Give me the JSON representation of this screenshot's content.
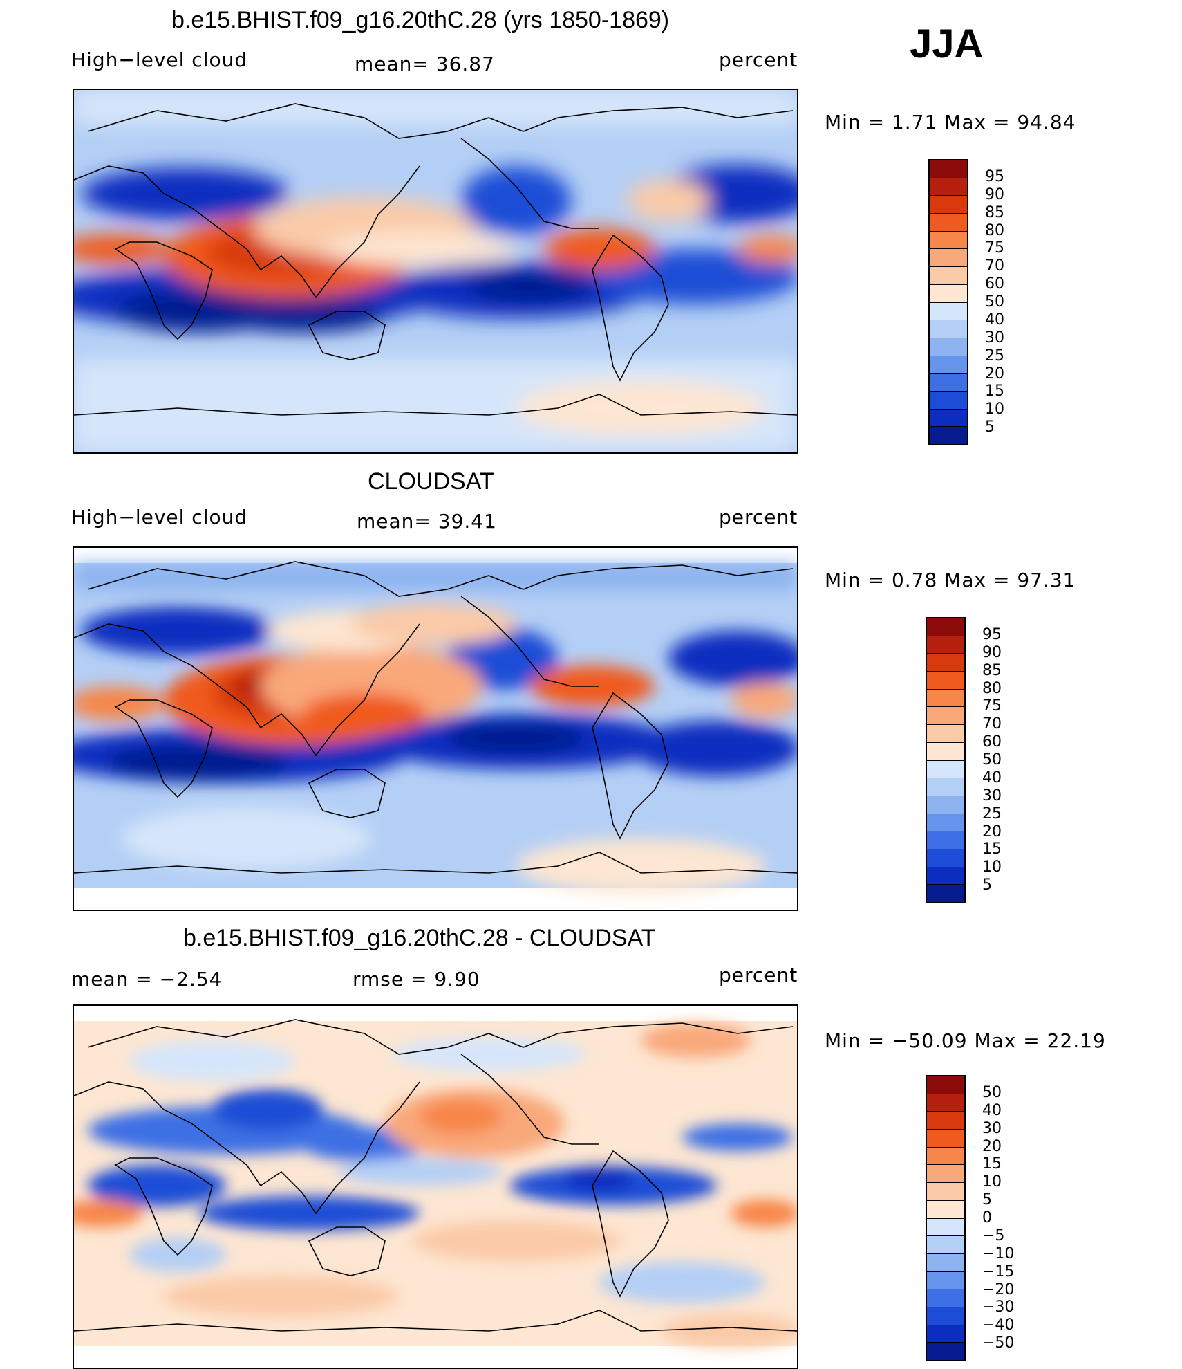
{
  "season": "JJA",
  "panels": [
    {
      "title": "b.e15.BHIST.f09_g16.20thC.28 (yrs 1850-1869)",
      "left_label": "High−level cloud",
      "mid_label": "mean=   36.87",
      "right_label": "percent",
      "stats": "Min  =     1.71  Max  =    94.84",
      "colorbar_labels": [
        "95",
        "90",
        "85",
        "80",
        "75",
        "70",
        "60",
        "50",
        "40",
        "30",
        "25",
        "20",
        "15",
        "10",
        "5"
      ]
    },
    {
      "title": "CLOUDSAT",
      "left_label": "High−level cloud",
      "mid_label": "mean=   39.41",
      "right_label": "percent",
      "stats": "Min  =     0.78  Max  =    97.31",
      "colorbar_labels": [
        "95",
        "90",
        "85",
        "80",
        "75",
        "70",
        "60",
        "50",
        "40",
        "30",
        "25",
        "20",
        "15",
        "10",
        "5"
      ]
    },
    {
      "title": "b.e15.BHIST.f09_g16.20thC.28 - CLOUDSAT",
      "left_label": "mean  =    −2.54",
      "mid_label": "rmse  =     9.90",
      "right_label": "percent",
      "stats": "Min  =  −50.09  Max  =    22.19",
      "colorbar_labels": [
        "50",
        "40",
        "30",
        "20",
        "15",
        "10",
        "5",
        "0",
        "−5",
        "−10",
        "−15",
        "−20",
        "−30",
        "−40",
        "−50"
      ]
    }
  ],
  "colors": {
    "scale": [
      "#8b0a0a",
      "#b5200f",
      "#d83a0e",
      "#f05a1e",
      "#f7864a",
      "#f9a87a",
      "#fbcaa8",
      "#fde6d2",
      "#d6e6fa",
      "#b4cff5",
      "#8db4f0",
      "#6693eb",
      "#3e6fe4",
      "#1d4dd6",
      "#0b2ec0",
      "#061b8f"
    ]
  },
  "chart_data": [
    {
      "type": "heatmap",
      "title": "b.e15.BHIST.f09_g16.20thC.28 (yrs 1850-1869)",
      "variable": "High-level cloud",
      "units": "percent",
      "mean": 36.87,
      "min": 1.71,
      "max": 94.84,
      "contour_levels": [
        5,
        10,
        15,
        20,
        25,
        30,
        40,
        50,
        60,
        70,
        75,
        80,
        85,
        90,
        95
      ],
      "season": "JJA"
    },
    {
      "type": "heatmap",
      "title": "CLOUDSAT",
      "variable": "High-level cloud",
      "units": "percent",
      "mean": 39.41,
      "min": 0.78,
      "max": 97.31,
      "contour_levels": [
        5,
        10,
        15,
        20,
        25,
        30,
        40,
        50,
        60,
        70,
        75,
        80,
        85,
        90,
        95
      ],
      "season": "JJA"
    },
    {
      "type": "heatmap",
      "title": "b.e15.BHIST.f09_g16.20thC.28 - CLOUDSAT",
      "units": "percent",
      "mean": -2.54,
      "rmse": 9.9,
      "min": -50.09,
      "max": 22.19,
      "contour_levels": [
        -50,
        -40,
        -30,
        -20,
        -15,
        -10,
        -5,
        0,
        5,
        10,
        15,
        20,
        30,
        40,
        50
      ],
      "season": "JJA"
    }
  ]
}
